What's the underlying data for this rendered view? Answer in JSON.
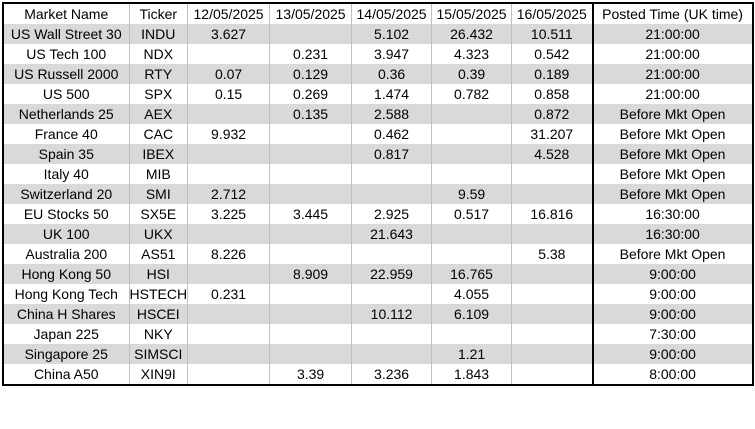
{
  "table": {
    "header": [
      "Market Name",
      "Ticker",
      "12/05/2025",
      "13/05/2025",
      "14/05/2025",
      "15/05/2025",
      "16/05/2025",
      "Posted Time (UK time)"
    ],
    "rows": [
      [
        "US Wall Street 30",
        "INDU",
        3.627,
        null,
        5.102,
        26.432,
        10.511,
        "21:00:00"
      ],
      [
        "US Tech 100",
        "NDX",
        null,
        0.231,
        3.947,
        4.323,
        0.542,
        "21:00:00"
      ],
      [
        "US Russell 2000",
        "RTY",
        0.07,
        0.129,
        0.36,
        0.39,
        0.189,
        "21:00:00"
      ],
      [
        "US 500",
        "SPX",
        0.15,
        0.269,
        1.474,
        0.782,
        0.858,
        "21:00:00"
      ],
      [
        "Netherlands 25",
        "AEX",
        null,
        0.135,
        2.588,
        null,
        0.872,
        "Before Mkt Open"
      ],
      [
        "France 40",
        "CAC",
        9.932,
        null,
        0.462,
        null,
        31.207,
        "Before Mkt Open"
      ],
      [
        "Spain 35",
        "IBEX",
        null,
        null,
        0.817,
        null,
        4.528,
        "Before Mkt Open"
      ],
      [
        "Italy 40",
        "MIB",
        null,
        null,
        null,
        null,
        null,
        "Before Mkt Open"
      ],
      [
        "Switzerland 20",
        "SMI",
        2.712,
        null,
        null,
        9.59,
        null,
        "Before Mkt Open"
      ],
      [
        "EU Stocks 50",
        "SX5E",
        3.225,
        3.445,
        2.925,
        0.517,
        16.816,
        "16:30:00"
      ],
      [
        "UK 100",
        "UKX",
        null,
        null,
        21.643,
        null,
        null,
        "16:30:00"
      ],
      [
        "Australia 200",
        "AS51",
        8.226,
        null,
        null,
        null,
        5.38,
        "Before Mkt Open"
      ],
      [
        "Hong Kong 50",
        "HSI",
        null,
        8.909,
        22.959,
        16.765,
        null,
        "9:00:00"
      ],
      [
        "Hong Kong Tech",
        "HSTECH",
        0.231,
        null,
        null,
        4.055,
        null,
        "9:00:00"
      ],
      [
        "China H Shares",
        "HSCEI",
        null,
        null,
        10.112,
        6.109,
        null,
        "9:00:00"
      ],
      [
        "Japan 225",
        "NKY",
        null,
        null,
        null,
        null,
        null,
        "7:30:00"
      ],
      [
        "Singapore 25",
        "SIMSCI",
        null,
        null,
        null,
        1.21,
        null,
        "9:00:00"
      ],
      [
        "China A50",
        "XIN9I",
        null,
        3.39,
        3.236,
        1.843,
        null,
        "8:00:00"
      ]
    ]
  }
}
